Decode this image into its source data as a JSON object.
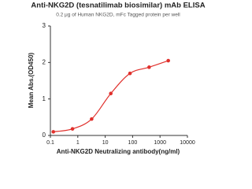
{
  "chart_data": {
    "type": "scatter",
    "title": "Anti-NKG2D (tesnatilimab biosimilar) mAb ELISA",
    "subtitle": "0.2 μg of Human NKG2D, mFc Tagged protein per well",
    "x_label": "Anti-NKG2D Neutralizing antibody(ng/ml)",
    "y_label": "Mean Abs.(OD450)",
    "x_scale": "log",
    "xlim": [
      0.1,
      10000
    ],
    "xticks": [
      0.1,
      1,
      10,
      100,
      1000,
      10000
    ],
    "ylim": [
      0,
      3
    ],
    "yticks": [
      0,
      1,
      2,
      3
    ],
    "series": [
      {
        "color": "#e0302c",
        "x": [
          0.128,
          0.64,
          3.2,
          16,
          80,
          400,
          2000
        ],
        "values": [
          0.1,
          0.18,
          0.45,
          1.15,
          1.7,
          1.87,
          2.05
        ]
      }
    ]
  }
}
